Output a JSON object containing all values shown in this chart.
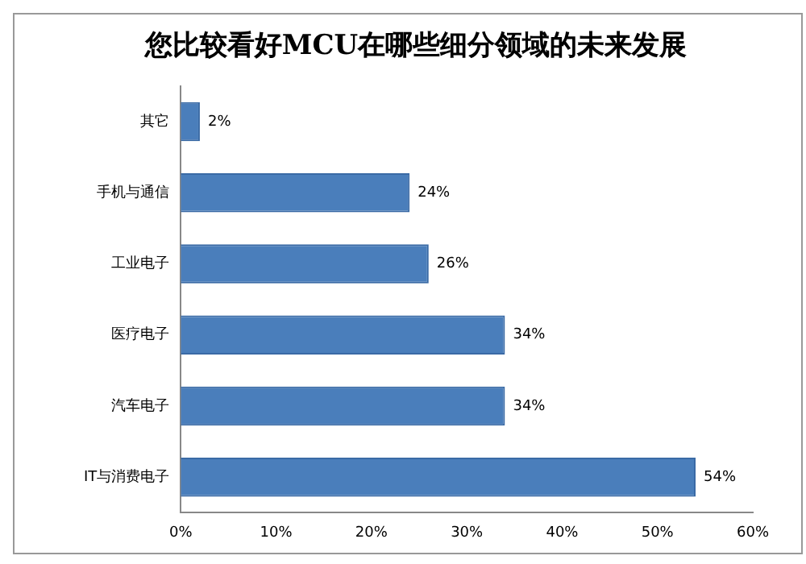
{
  "chart_data": {
    "type": "bar",
    "orientation": "horizontal",
    "title": "您比较看好MCU在哪些细分领域的未来发展",
    "categories": [
      "其它",
      "手机与通信",
      "工业电子",
      "医疗电子",
      "汽车电子",
      "IT与消费电子"
    ],
    "values": [
      2,
      24,
      26,
      34,
      34,
      54
    ],
    "value_labels": [
      "2%",
      "24%",
      "26%",
      "34%",
      "34%",
      "54%"
    ],
    "color": "#4a7ebb",
    "xlim": [
      0,
      60
    ],
    "xticks": [
      {
        "value": 0,
        "label": "0%"
      },
      {
        "value": 10,
        "label": "10%"
      },
      {
        "value": 20,
        "label": "20%"
      },
      {
        "value": 30,
        "label": "30%"
      },
      {
        "value": 40,
        "label": "40%"
      },
      {
        "value": 50,
        "label": "50%"
      },
      {
        "value": 60,
        "label": "60%"
      }
    ],
    "grid": false,
    "legend": false
  }
}
